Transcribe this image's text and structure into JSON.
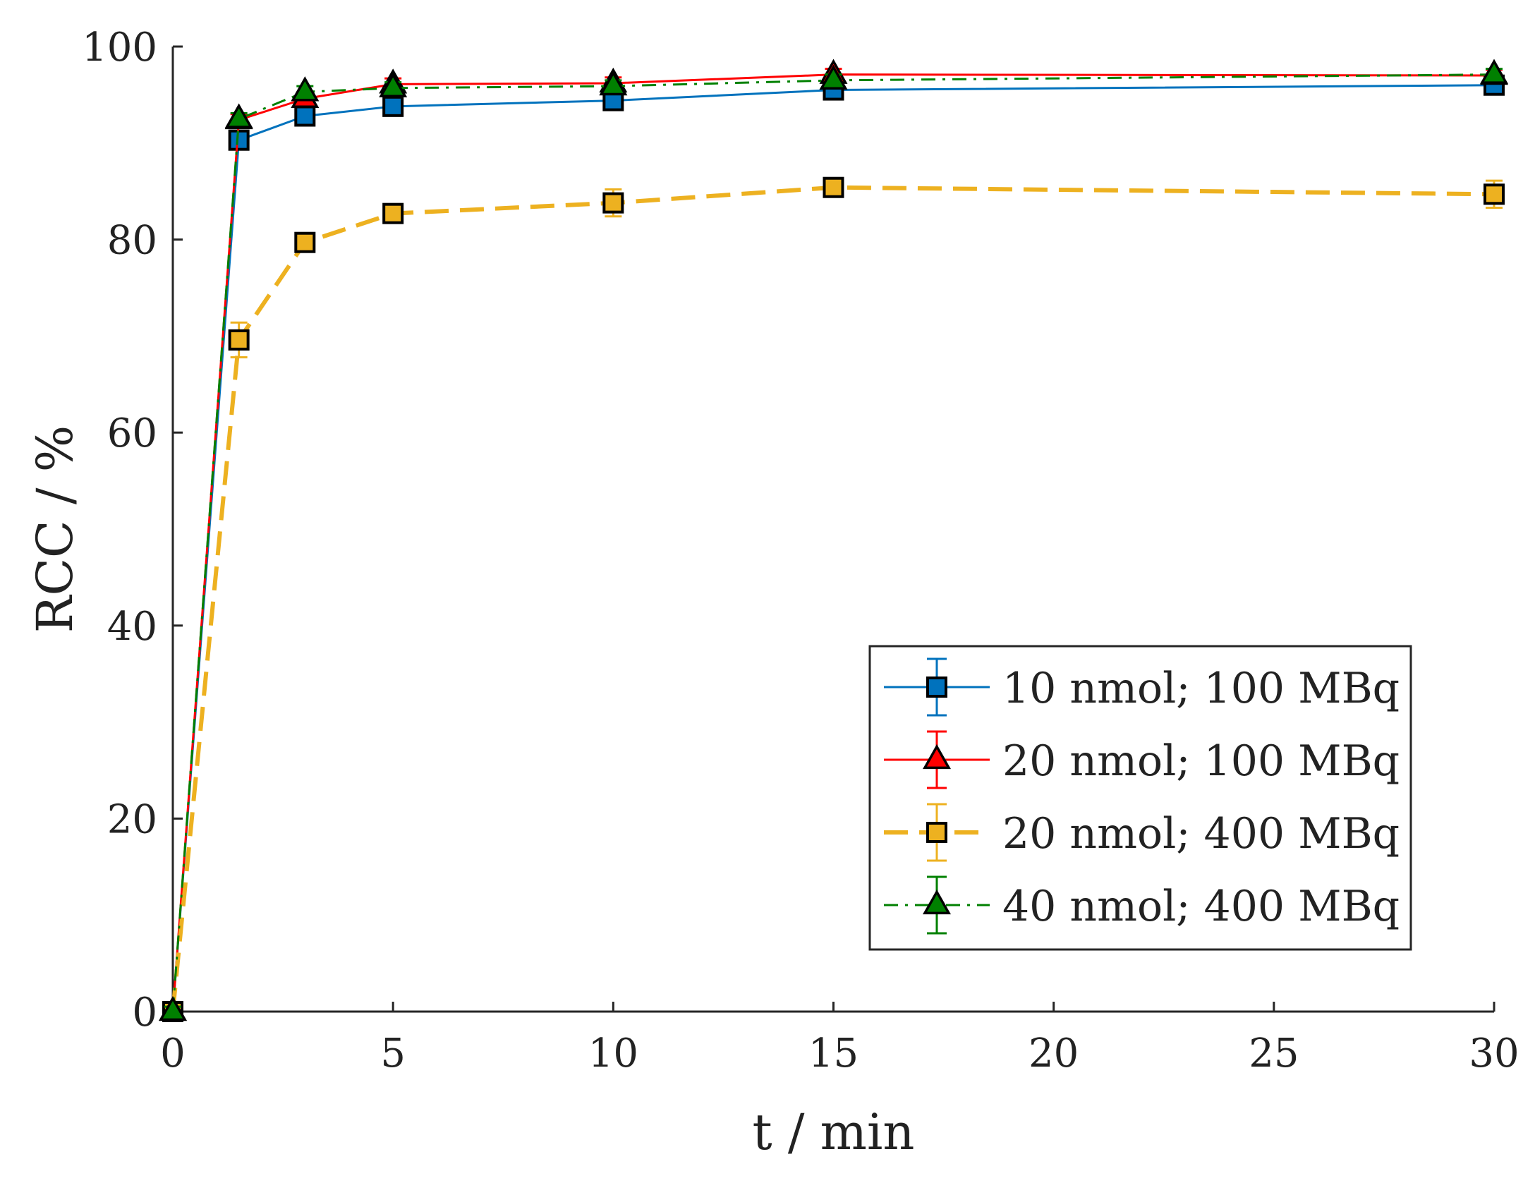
{
  "chart_data": {
    "type": "line",
    "title": "",
    "xlabel": "t / min",
    "ylabel": "RCC / %",
    "xlim": [
      0,
      30
    ],
    "ylim": [
      0,
      100
    ],
    "xticks": [
      "0",
      "5",
      "10",
      "15",
      "20",
      "25",
      "30"
    ],
    "yticks": [
      "0",
      "20",
      "40",
      "60",
      "80",
      "100"
    ],
    "grid": false,
    "legend_position": "lower-right",
    "x": [
      0,
      1.5,
      3,
      5,
      10,
      15,
      30
    ],
    "series": [
      {
        "name": "10 nmol; 100 MBq",
        "color": "#0072BD",
        "marker": "square",
        "line_style": "solid",
        "values": [
          0,
          90.3,
          92.8,
          93.8,
          94.4,
          95.5,
          96.0
        ],
        "errors": [
          0.5,
          0.9,
          0.7,
          0.7,
          0.6,
          0.6,
          0.6
        ]
      },
      {
        "name": "20 nmol; 100 MBq",
        "color": "#FF0000",
        "marker": "triangle",
        "line_style": "solid",
        "values": [
          0,
          92.4,
          94.6,
          96.1,
          96.2,
          97.1,
          97.0
        ],
        "errors": [
          0.5,
          0.6,
          0.6,
          0.6,
          0.6,
          0.6,
          0.6
        ]
      },
      {
        "name": "20 nmol; 400 MBq",
        "color": "#EDB120",
        "marker": "square",
        "line_style": "dashed",
        "values": [
          0,
          69.6,
          79.7,
          82.7,
          83.8,
          85.4,
          84.7
        ],
        "errors": [
          0.5,
          1.8,
          0.9,
          0.9,
          1.4,
          0.9,
          1.4
        ]
      },
      {
        "name": "40 nmol; 400 MBq",
        "color": "#008000",
        "marker": "triangle",
        "line_style": "dashdot",
        "values": [
          0,
          92.5,
          95.3,
          95.7,
          95.9,
          96.5,
          97.1
        ],
        "errors": [
          0.5,
          0.6,
          0.6,
          0.6,
          0.6,
          0.6,
          0.6
        ]
      }
    ]
  }
}
